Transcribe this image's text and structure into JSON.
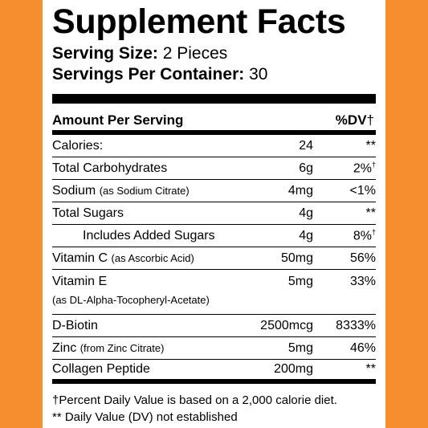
{
  "title": "Supplement Facts",
  "serving_size_label": "Serving Size:",
  "serving_size_value": "2 Pieces",
  "servings_label": "Servings Per Container:",
  "servings_value": "30",
  "header": {
    "amount_label": "Amount Per Serving",
    "dv_label": "%DV",
    "dv_symbol": "†"
  },
  "rows": [
    {
      "name": "Calories:",
      "sub": "",
      "amount": "24",
      "dv": "**",
      "dv_mark": ""
    },
    {
      "name": "Total Carbohydrates",
      "sub": "",
      "amount": "6g",
      "dv": "2%",
      "dv_mark": "†"
    },
    {
      "name": "Sodium",
      "sub": "(as Sodium Citrate)",
      "amount": "4mg",
      "dv": "<1%",
      "dv_mark": ""
    },
    {
      "name": "Total Sugars",
      "sub": "",
      "amount": "4g",
      "dv": "**",
      "dv_mark": ""
    },
    {
      "name": "Includes Added Sugars",
      "sub": "",
      "amount": "4g",
      "dv": "8%",
      "dv_mark": "†"
    },
    {
      "name": "Vitamin C",
      "sub": "(as Ascorbic Acid)",
      "amount": "50mg",
      "dv": "56%",
      "dv_mark": ""
    },
    {
      "name": "Vitamin E",
      "sub": "(as DL-Alpha-Tocopheryl-Acetate)",
      "amount": "5mg",
      "dv": "33%",
      "dv_mark": ""
    },
    {
      "name": "D-Biotin",
      "sub": "",
      "amount": "2500mcg",
      "dv": "8333%",
      "dv_mark": ""
    },
    {
      "name": "Zinc",
      "sub": "(from Zinc Citrate)",
      "amount": "5mg",
      "dv": "46%",
      "dv_mark": ""
    },
    {
      "name": "Collagen Peptide",
      "sub": "",
      "amount": "200mg",
      "dv": "**",
      "dv_mark": ""
    }
  ],
  "footnotes": [
    "†Percent Daily Value is based on a 2,000 calorie diet.",
    "** Daily Value (DV) not established"
  ],
  "colors": {
    "background": "#f68d2e",
    "panel": "#ffffff",
    "text": "#000000"
  }
}
